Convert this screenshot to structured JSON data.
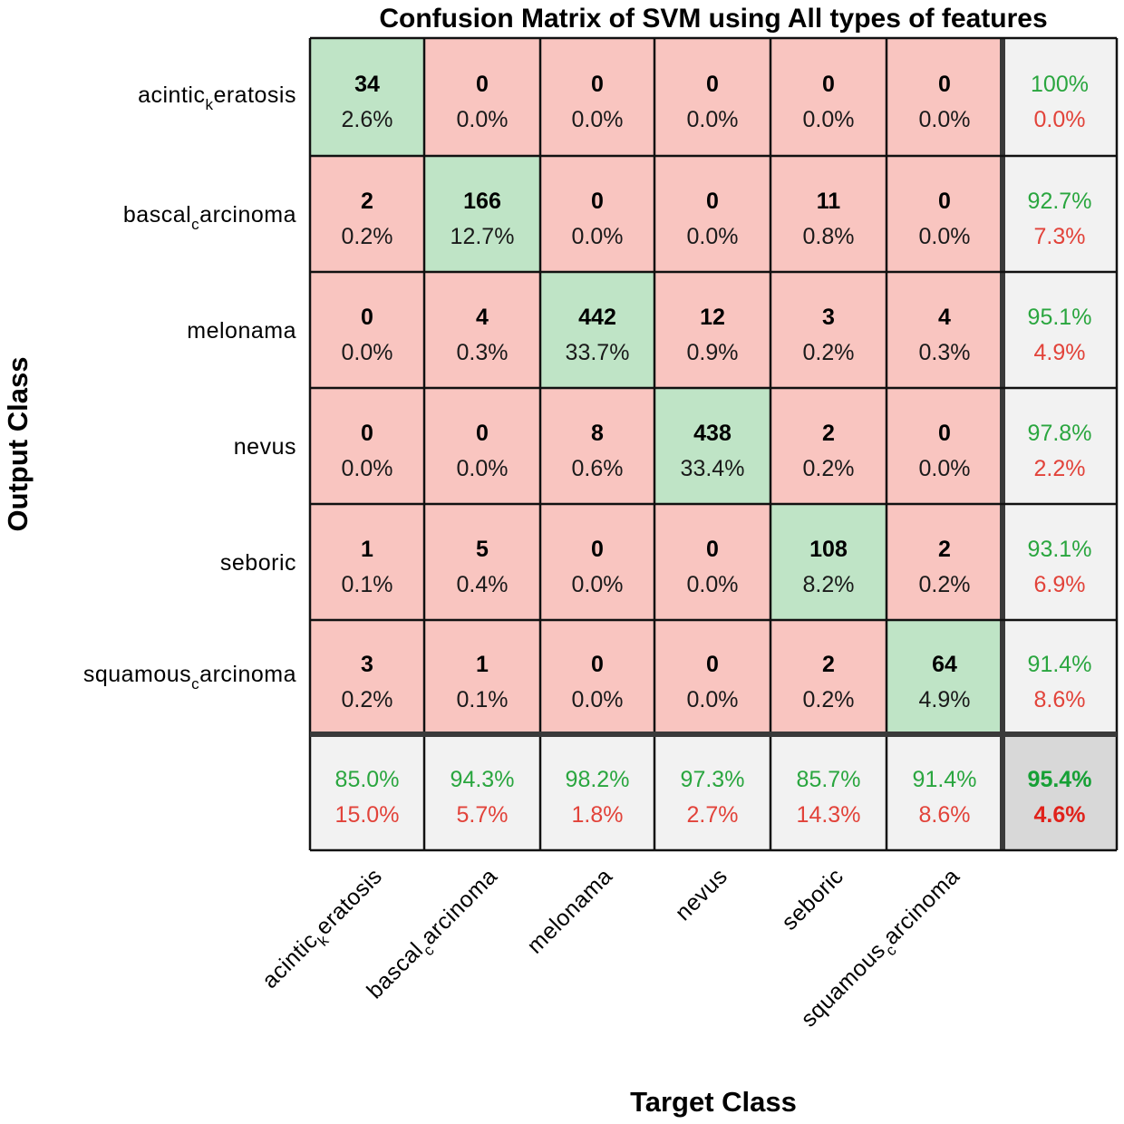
{
  "chart_data": {
    "type": "heatmap",
    "title": "Confusion Matrix of SVM using All types of features",
    "xlabel": "Target Class",
    "ylabel": "Output Class",
    "classes": [
      {
        "base": "acintic",
        "sub": "k",
        "rest": "eratosis"
      },
      {
        "base": "bascal",
        "sub": "c",
        "rest": "arcinoma"
      },
      {
        "base": "melonama",
        "sub": "",
        "rest": ""
      },
      {
        "base": "nevus",
        "sub": "",
        "rest": ""
      },
      {
        "base": "seboric",
        "sub": "",
        "rest": ""
      },
      {
        "base": "squamous",
        "sub": "c",
        "rest": "arcinoma"
      }
    ],
    "matrix": [
      [
        34,
        0,
        0,
        0,
        0,
        0
      ],
      [
        2,
        166,
        0,
        0,
        11,
        0
      ],
      [
        0,
        4,
        442,
        12,
        3,
        4
      ],
      [
        0,
        0,
        8,
        438,
        2,
        0
      ],
      [
        1,
        5,
        0,
        0,
        108,
        2
      ],
      [
        3,
        1,
        0,
        0,
        2,
        64
      ]
    ],
    "matrix_percent": [
      [
        "2.6%",
        "0.0%",
        "0.0%",
        "0.0%",
        "0.0%",
        "0.0%"
      ],
      [
        "0.2%",
        "12.7%",
        "0.0%",
        "0.0%",
        "0.8%",
        "0.0%"
      ],
      [
        "0.0%",
        "0.3%",
        "33.7%",
        "0.9%",
        "0.2%",
        "0.3%"
      ],
      [
        "0.0%",
        "0.0%",
        "0.6%",
        "33.4%",
        "0.2%",
        "0.0%"
      ],
      [
        "0.1%",
        "0.4%",
        "0.0%",
        "0.0%",
        "8.2%",
        "0.2%"
      ],
      [
        "0.2%",
        "0.1%",
        "0.0%",
        "0.0%",
        "0.2%",
        "4.9%"
      ]
    ],
    "row_summary": [
      {
        "correct": "100%",
        "incorrect": "0.0%"
      },
      {
        "correct": "92.7%",
        "incorrect": "7.3%"
      },
      {
        "correct": "95.1%",
        "incorrect": "4.9%"
      },
      {
        "correct": "97.8%",
        "incorrect": "2.2%"
      },
      {
        "correct": "93.1%",
        "incorrect": "6.9%"
      },
      {
        "correct": "91.4%",
        "incorrect": "8.6%"
      }
    ],
    "col_summary": [
      {
        "correct": "85.0%",
        "incorrect": "15.0%"
      },
      {
        "correct": "94.3%",
        "incorrect": "5.7%"
      },
      {
        "correct": "98.2%",
        "incorrect": "1.8%"
      },
      {
        "correct": "97.3%",
        "incorrect": "2.7%"
      },
      {
        "correct": "85.7%",
        "incorrect": "14.3%"
      },
      {
        "correct": "91.4%",
        "incorrect": "8.6%"
      }
    ],
    "overall": {
      "correct": "95.4%",
      "incorrect": "4.6%"
    },
    "colors": {
      "diagonal": "#bfe4c6",
      "off_diagonal": "#f9c5c0",
      "summary": "#f2f2f2",
      "overall": "#d8d8d8",
      "correct_text": "#2aa63f",
      "incorrect_text": "#e2433a"
    }
  }
}
